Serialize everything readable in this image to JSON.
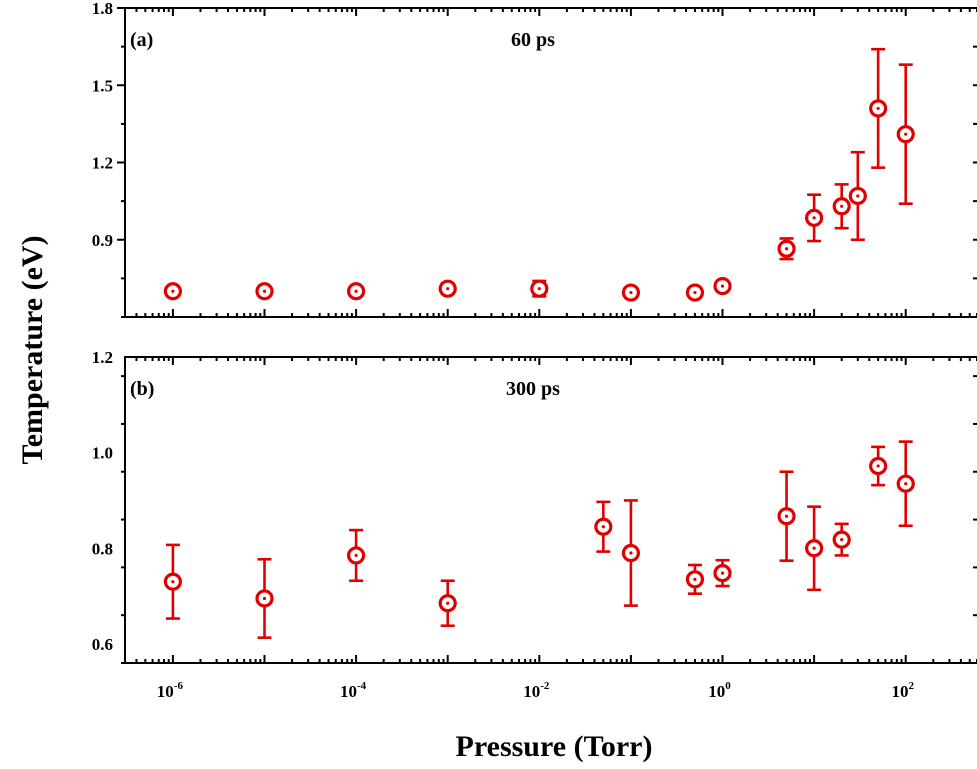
{
  "colors": {
    "marker": "#e00000",
    "axis": "#000000"
  },
  "chart_data": {
    "type": "scatter",
    "xlabel": "Pressure (Torr)",
    "ylabel": "Temperature (eV)",
    "x_scale": "log",
    "xlim": [
      3e-07,
      600
    ],
    "x_major_ticks": [
      1e-06,
      1e-05,
      0.0001,
      0.001,
      0.01,
      0.1,
      1,
      10,
      100
    ],
    "x_tick_labels": [
      {
        "value": 1e-06,
        "base": "10",
        "exp": "-6"
      },
      {
        "value": 0.0001,
        "base": "10",
        "exp": "-4"
      },
      {
        "value": 0.01,
        "base": "10",
        "exp": "-2"
      },
      {
        "value": 1,
        "base": "10",
        "exp": "0"
      },
      {
        "value": 100,
        "base": "10",
        "exp": "2"
      }
    ],
    "grid": false,
    "legend": "none",
    "panels": [
      {
        "tag": "(a)",
        "title": "60 ps",
        "ylim": [
          0.6,
          1.8
        ],
        "yticks": [
          0.9,
          1.2,
          1.5,
          1.8
        ],
        "ytick_labels": [
          "0.9",
          "1.2",
          "1.5",
          "1.8"
        ],
        "y_minor_step": 0.15,
        "points": [
          {
            "x": 1e-06,
            "y": 0.7,
            "err": 0.015
          },
          {
            "x": 1e-05,
            "y": 0.7,
            "err": 0.015
          },
          {
            "x": 0.0001,
            "y": 0.7,
            "err": 0.015
          },
          {
            "x": 0.001,
            "y": 0.71,
            "err": 0.02
          },
          {
            "x": 0.01,
            "y": 0.71,
            "err": 0.03
          },
          {
            "x": 0.1,
            "y": 0.695,
            "err": 0.015
          },
          {
            "x": 0.5,
            "y": 0.695,
            "err": 0.015
          },
          {
            "x": 1,
            "y": 0.72,
            "err": 0.015
          },
          {
            "x": 5,
            "y": 0.865,
            "err": 0.04
          },
          {
            "x": 10,
            "y": 0.985,
            "err": 0.09
          },
          {
            "x": 20,
            "y": 1.03,
            "err": 0.085
          },
          {
            "x": 30,
            "y": 1.07,
            "err": 0.17
          },
          {
            "x": 50,
            "y": 1.41,
            "err": 0.23
          },
          {
            "x": 100,
            "y": 1.31,
            "err": 0.27
          }
        ]
      },
      {
        "tag": "(b)",
        "title": "300 ps",
        "ylim": [
          0.56,
          1.2
        ],
        "yticks": [
          0.6,
          0.8,
          1.0,
          1.2
        ],
        "ytick_labels": [
          "0.6",
          "0.8",
          "1.0",
          "1.2"
        ],
        "y_minor_step": 0.1,
        "points": [
          {
            "x": 1e-06,
            "y": 0.73,
            "err": 0.077
          },
          {
            "x": 1e-05,
            "y": 0.695,
            "err": 0.082
          },
          {
            "x": 0.0001,
            "y": 0.785,
            "err": 0.053
          },
          {
            "x": 0.001,
            "y": 0.685,
            "err": 0.047
          },
          {
            "x": 0.05,
            "y": 0.845,
            "err": 0.052
          },
          {
            "x": 0.1,
            "y": 0.79,
            "err": 0.11
          },
          {
            "x": 0.5,
            "y": 0.735,
            "err": 0.03
          },
          {
            "x": 1,
            "y": 0.748,
            "err": 0.027
          },
          {
            "x": 5,
            "y": 0.867,
            "err": 0.093
          },
          {
            "x": 10,
            "y": 0.8,
            "err": 0.087
          },
          {
            "x": 20,
            "y": 0.818,
            "err": 0.033
          },
          {
            "x": 50,
            "y": 0.972,
            "err": 0.04
          },
          {
            "x": 100,
            "y": 0.935,
            "err": 0.088
          }
        ]
      }
    ]
  }
}
